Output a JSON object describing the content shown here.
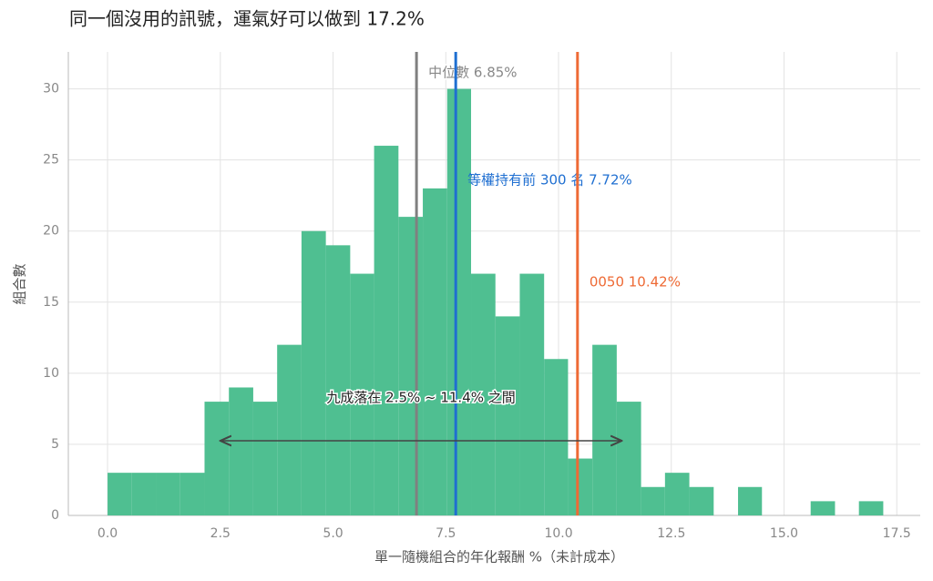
{
  "chart_data": {
    "type": "histogram",
    "title": "同一個沒用的訊號，運氣好可以做到 17.2%",
    "x_label": "單一隨機組合的年化報酬 %（未計成本）",
    "y_label": "組合數",
    "bins": [
      0,
      0.54,
      1.08,
      1.61,
      2.15,
      2.69,
      3.23,
      3.76,
      4.3,
      4.84,
      5.38,
      5.91,
      6.45,
      6.99,
      7.53,
      8.06,
      8.6,
      9.14,
      9.68,
      10.21,
      10.75,
      11.29,
      11.83,
      12.36,
      12.9,
      13.44,
      13.98,
      14.51,
      15.05,
      15.59,
      16.13,
      16.66,
      17.2
    ],
    "counts": [
      3,
      3,
      3,
      3,
      8,
      9,
      8,
      12,
      20,
      19,
      17,
      26,
      21,
      23,
      30,
      17,
      14,
      17,
      11,
      4,
      12,
      8,
      2,
      3,
      2,
      0,
      2,
      0,
      0,
      1,
      0,
      1
    ],
    "color": "#4fbf91",
    "xlim": [
      -0.87,
      18.02
    ],
    "ylim": [
      0,
      32.6
    ],
    "xticks": [
      {
        "value": 0,
        "label": "0.0"
      },
      2.5,
      {
        "value": 5,
        "label": "5.0"
      },
      7.5,
      {
        "value": 10,
        "label": "10.0"
      },
      12.5,
      {
        "value": 15,
        "label": "15.0"
      },
      17.5
    ],
    "yticks": [
      0,
      5,
      10,
      15,
      20,
      25,
      30
    ],
    "grid": true,
    "reference_lines": [
      {
        "value": 6.85,
        "label": "中位數 6.85%",
        "color": "#808080"
      },
      {
        "value": 7.72,
        "label": "等權持有前 300 名 7.72%",
        "color": "#1f6fd1"
      },
      {
        "value": 10.42,
        "label": "0050 10.42%",
        "color": "#ee6a35"
      }
    ],
    "range_annotation": {
      "range": [
        2.5,
        11.4
      ],
      "label": "九成落在 2.5% ~ 11.4% 之間"
    }
  }
}
